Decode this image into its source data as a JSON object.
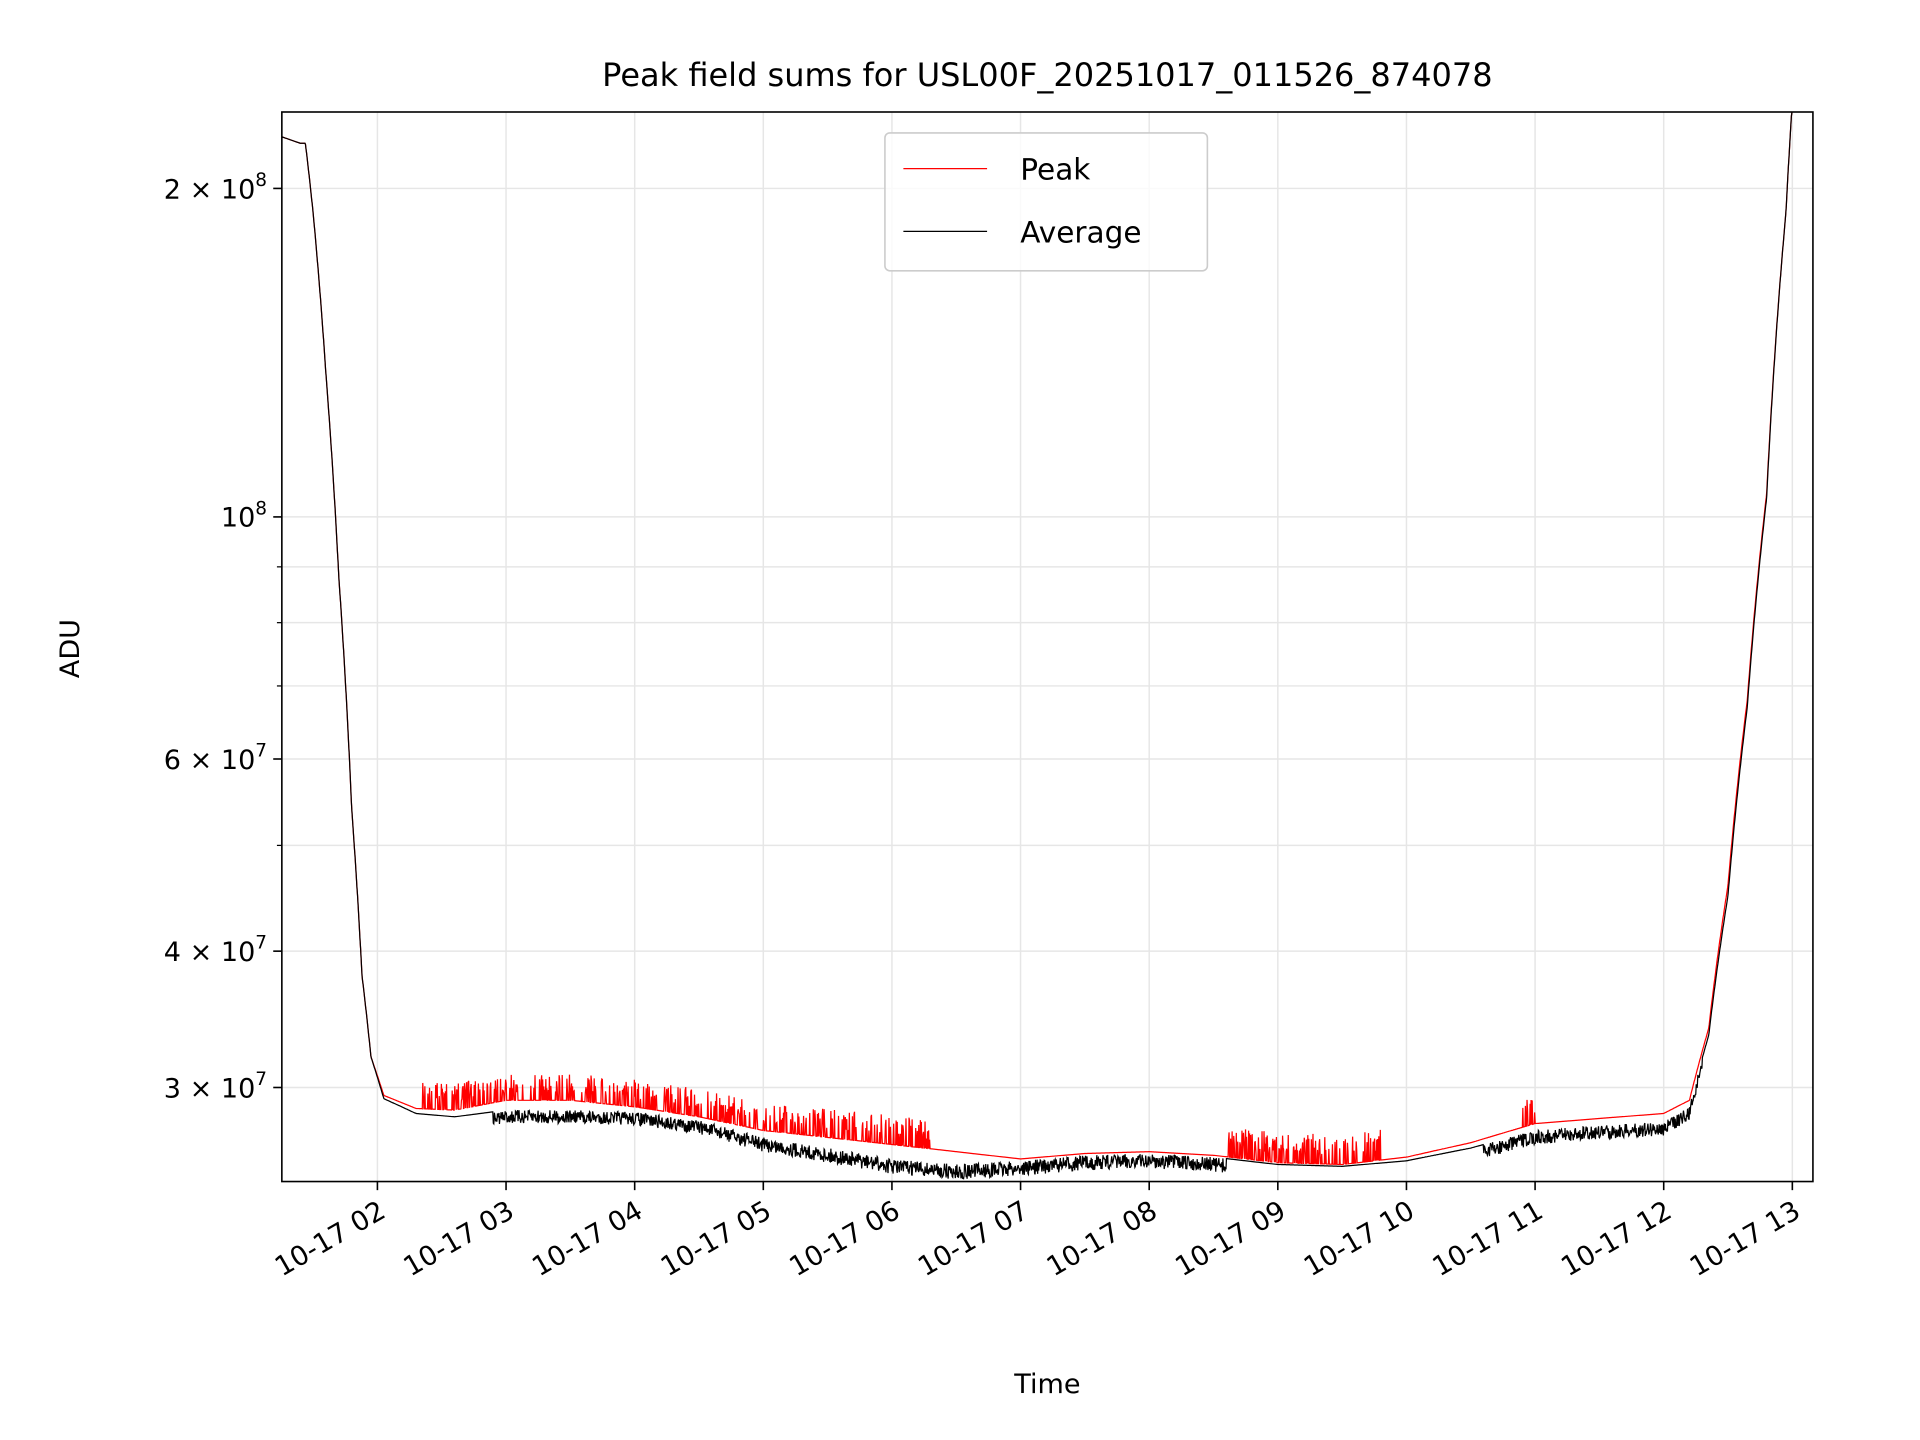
{
  "chart_data": {
    "type": "line",
    "title": "Peak field sums for USL00F_20251017_011526_874078",
    "xlabel": "Time",
    "ylabel": "ADU",
    "yscale": "log",
    "xlim_hours": [
      1.257,
      13.16
    ],
    "ylim": [
      24600000,
      235000000
    ],
    "grid": true,
    "legend_placement": "upper-center",
    "x_ticks": [
      {
        "h": 2,
        "label": "10-17 02"
      },
      {
        "h": 3,
        "label": "10-17 03"
      },
      {
        "h": 4,
        "label": "10-17 04"
      },
      {
        "h": 5,
        "label": "10-17 05"
      },
      {
        "h": 6,
        "label": "10-17 06"
      },
      {
        "h": 7,
        "label": "10-17 07"
      },
      {
        "h": 8,
        "label": "10-17 08"
      },
      {
        "h": 9,
        "label": "10-17 09"
      },
      {
        "h": 10,
        "label": "10-17 10"
      },
      {
        "h": 11,
        "label": "10-17 11"
      },
      {
        "h": 12,
        "label": "10-17 12"
      },
      {
        "h": 13,
        "label": "10-17 13"
      }
    ],
    "y_ticks": [
      {
        "v": 200000000,
        "mantissa": "2",
        "times": "×",
        "base": "10",
        "exp": "8"
      },
      {
        "v": 100000000,
        "mantissa": "",
        "times": "",
        "base": "10",
        "exp": "8"
      },
      {
        "v": 60000000,
        "mantissa": "6",
        "times": "×",
        "base": "10",
        "exp": "7"
      },
      {
        "v": 40000000,
        "mantissa": "4",
        "times": "×",
        "base": "10",
        "exp": "7"
      },
      {
        "v": 30000000,
        "mantissa": "3",
        "times": "×",
        "base": "10",
        "exp": "7"
      }
    ],
    "y_minor_ticks": [
      50000000,
      70000000,
      80000000,
      90000000
    ],
    "series": [
      {
        "name": "Peak",
        "color": "#ff0000",
        "hours": [
          1.257,
          1.4,
          1.44,
          1.5,
          1.6,
          1.7,
          1.8,
          1.88,
          1.95,
          2.05,
          2.3,
          2.6,
          3.0,
          3.5,
          4.0,
          4.5,
          5.0,
          5.5,
          6.0,
          6.5,
          7.0,
          7.5,
          8.0,
          8.5,
          9.0,
          9.5,
          10.0,
          10.5,
          11.0,
          11.5,
          12.0,
          12.2,
          12.35,
          12.5,
          12.65,
          12.8,
          12.95,
          13.0
        ],
        "values_1e7": [
          22.3,
          22.0,
          22.0,
          19.0,
          13.5,
          8.8,
          5.4,
          3.8,
          3.2,
          2.95,
          2.87,
          2.86,
          2.92,
          2.92,
          2.88,
          2.82,
          2.74,
          2.7,
          2.66,
          2.62,
          2.58,
          2.61,
          2.62,
          2.6,
          2.56,
          2.55,
          2.59,
          2.67,
          2.78,
          2.81,
          2.84,
          2.92,
          3.4,
          4.6,
          6.8,
          10.5,
          19.0,
          24.0
        ],
        "spike_ranges_hours": [
          [
            2.35,
            6.3
          ],
          [
            8.6,
            9.8
          ],
          [
            10.9,
            11.0
          ],
          [
            4.5,
            4.52
          ]
        ]
      },
      {
        "name": "Average",
        "color": "#000000",
        "hours": [
          1.257,
          1.4,
          1.44,
          1.5,
          1.6,
          1.7,
          1.8,
          1.88,
          1.95,
          2.05,
          2.3,
          2.6,
          3.0,
          3.5,
          4.0,
          4.5,
          5.0,
          5.5,
          6.0,
          6.5,
          7.0,
          7.5,
          8.0,
          8.5,
          9.0,
          9.5,
          10.0,
          10.5,
          11.0,
          11.5,
          12.0,
          12.2,
          12.35,
          12.5,
          12.65,
          12.8,
          12.95,
          13.0
        ],
        "values_1e7": [
          22.3,
          22.0,
          22.0,
          19.0,
          13.5,
          8.8,
          5.4,
          3.8,
          3.2,
          2.93,
          2.84,
          2.82,
          2.86,
          2.86,
          2.85,
          2.8,
          2.7,
          2.64,
          2.58,
          2.55,
          2.57,
          2.6,
          2.61,
          2.59,
          2.55,
          2.54,
          2.57,
          2.64,
          2.74,
          2.77,
          2.79,
          2.88,
          3.35,
          4.5,
          6.7,
          10.4,
          19.0,
          24.0
        ],
        "dip_ranges_hours": [
          [
            2.9,
            7.1
          ],
          [
            7.1,
            8.6
          ],
          [
            10.6,
            12.3
          ]
        ]
      }
    ]
  }
}
